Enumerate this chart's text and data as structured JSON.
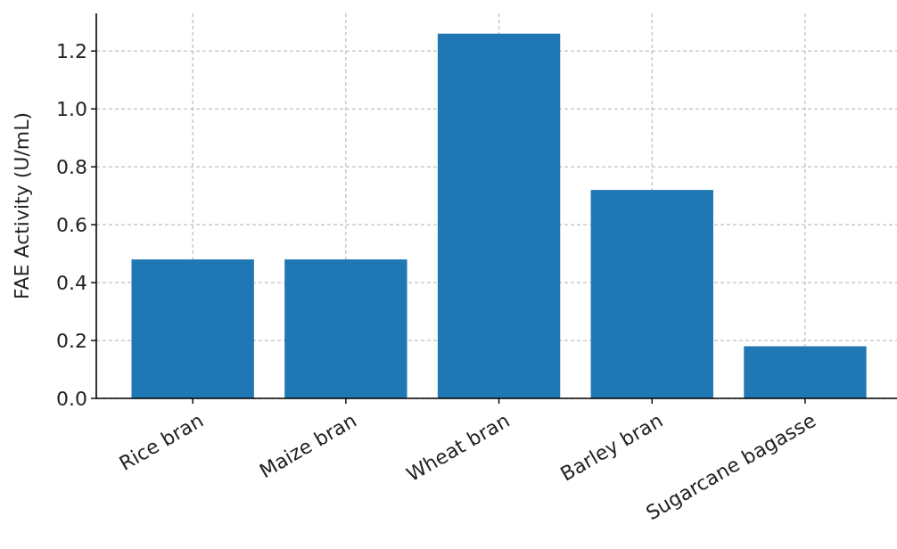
{
  "chart_data": {
    "type": "bar",
    "ylabel": "FAE Activity (U/mL)",
    "categories": [
      "Rice bran",
      "Maize bran",
      "Wheat bran",
      "Barley bran",
      "Sugarcane bagasse"
    ],
    "values": [
      0.48,
      0.48,
      1.26,
      0.72,
      0.18
    ],
    "color": "#1f77b4",
    "ylim": [
      0,
      1.33
    ],
    "yticks": [
      {
        "value": 0,
        "label": "0.0"
      },
      {
        "value": 0.2,
        "label": "0.2"
      },
      {
        "value": 0.4,
        "label": "0.4"
      },
      {
        "value": 0.6,
        "label": "0.6"
      },
      {
        "value": 0.8,
        "label": "0.8"
      },
      {
        "value": 1,
        "label": "1.0"
      },
      {
        "value": 1.2,
        "label": "1.2"
      }
    ],
    "grid": true
  }
}
